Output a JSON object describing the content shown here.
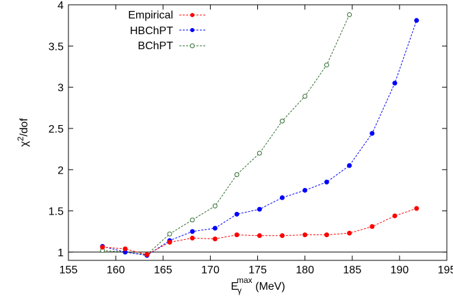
{
  "chart_data": {
    "type": "line",
    "xlabel": {
      "base": "E",
      "sub": "γ",
      "sup": "max",
      "unit": " (MeV)"
    },
    "ylabel": {
      "base": "χ",
      "sup": "2",
      "rest": "/dof"
    },
    "xlim": [
      155,
      195
    ],
    "ylim": [
      0.9,
      4
    ],
    "xticks": [
      155,
      160,
      165,
      170,
      175,
      180,
      185,
      190,
      195
    ],
    "yticks": [
      1,
      1.5,
      2,
      2.5,
      3,
      3.5,
      4
    ],
    "xtick_labels": [
      "155",
      "160",
      "165",
      "170",
      "175",
      "180",
      "185",
      "190",
      "195"
    ],
    "ytick_labels": [
      "1",
      "1.5",
      "2",
      "2.5",
      "3",
      "3.5",
      "4"
    ],
    "reference_line": 1,
    "grid": false,
    "legend_position": "top-left",
    "series": [
      {
        "name": "Empirical",
        "color": "#ff0000",
        "marker": "filled-circle",
        "x": [
          158.6,
          161.0,
          163.3,
          165.7,
          168.1,
          170.5,
          172.8,
          175.2,
          177.6,
          180.0,
          182.3,
          184.7,
          187.1,
          189.5,
          191.8
        ],
        "y": [
          1.06,
          1.04,
          0.97,
          1.12,
          1.17,
          1.16,
          1.21,
          1.2,
          1.2,
          1.21,
          1.21,
          1.23,
          1.31,
          1.44,
          1.53
        ]
      },
      {
        "name": "HBChPT",
        "color": "#0000ff",
        "marker": "filled-circle",
        "x": [
          158.6,
          161.0,
          163.3,
          165.7,
          168.1,
          170.5,
          172.8,
          175.2,
          177.6,
          180.0,
          182.3,
          184.7,
          187.1,
          189.5,
          191.8
        ],
        "y": [
          1.07,
          1.0,
          0.96,
          1.14,
          1.25,
          1.29,
          1.46,
          1.52,
          1.66,
          1.75,
          1.85,
          2.05,
          2.44,
          3.05,
          3.81
        ]
      },
      {
        "name": "BChPT",
        "color": "#2e6b2e",
        "marker": "open-circle",
        "x": [
          158.6,
          161.0,
          163.3,
          165.7,
          168.1,
          170.5,
          172.8,
          175.2,
          177.6,
          180.0,
          182.3,
          184.7
        ],
        "y": [
          1.02,
          1.0,
          0.97,
          1.22,
          1.39,
          1.56,
          1.94,
          2.2,
          2.59,
          2.89,
          3.27,
          3.88
        ]
      }
    ]
  }
}
